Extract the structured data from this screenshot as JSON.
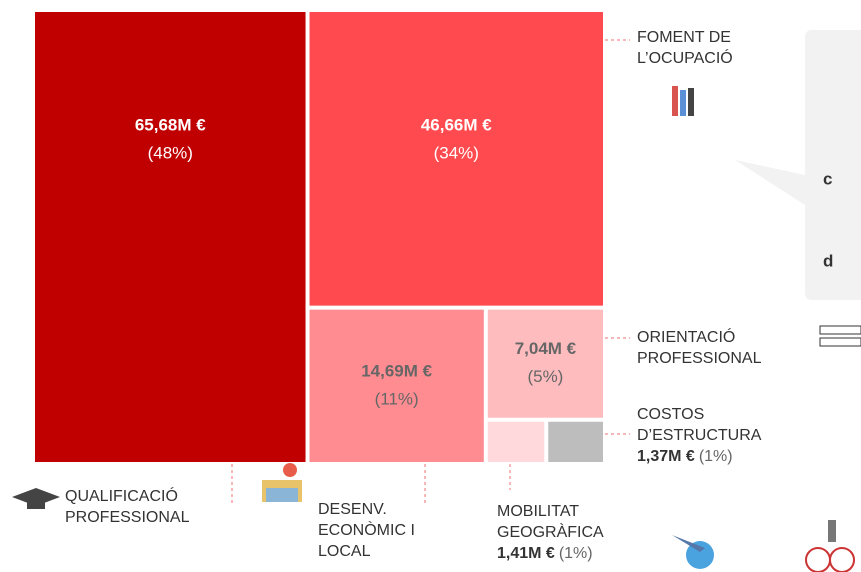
{
  "chart_data": {
    "type": "treemap",
    "categories": [
      [
        "QUALIFICACIÓ",
        "PROFESSIONAL"
      ],
      [
        "FOMENT DE",
        "L’OCUPACIÓ"
      ],
      [
        "DESENV.",
        "ECONÒMIC  I",
        "LOCAL"
      ],
      [
        "ORIENTACIÓ",
        "PROFESSIONAL"
      ],
      [
        "MOBILITAT",
        "GEOGRÀFICA"
      ],
      [
        "COSTOS",
        "D’ESTRUCTURA"
      ]
    ],
    "values": [
      65.68,
      46.66,
      14.69,
      7.04,
      1.41,
      1.37
    ],
    "value_labels": [
      "65,68M €",
      "46,66M €",
      "14,69M €",
      "7,04M €",
      "1,41M €",
      "1,37M €"
    ],
    "percents": [
      48,
      34,
      11,
      5,
      1,
      1
    ],
    "percent_labels": [
      "(48%)",
      "(34%)",
      "(11%)",
      "(5%)",
      "(1%)",
      "(1%)"
    ],
    "colors": [
      "#c00000",
      "#ff4b4f",
      "#ff8c91",
      "#ffbcbf",
      "#ffd9db",
      "#bdbdbd"
    ],
    "annotations": [
      "c",
      "d"
    ]
  }
}
